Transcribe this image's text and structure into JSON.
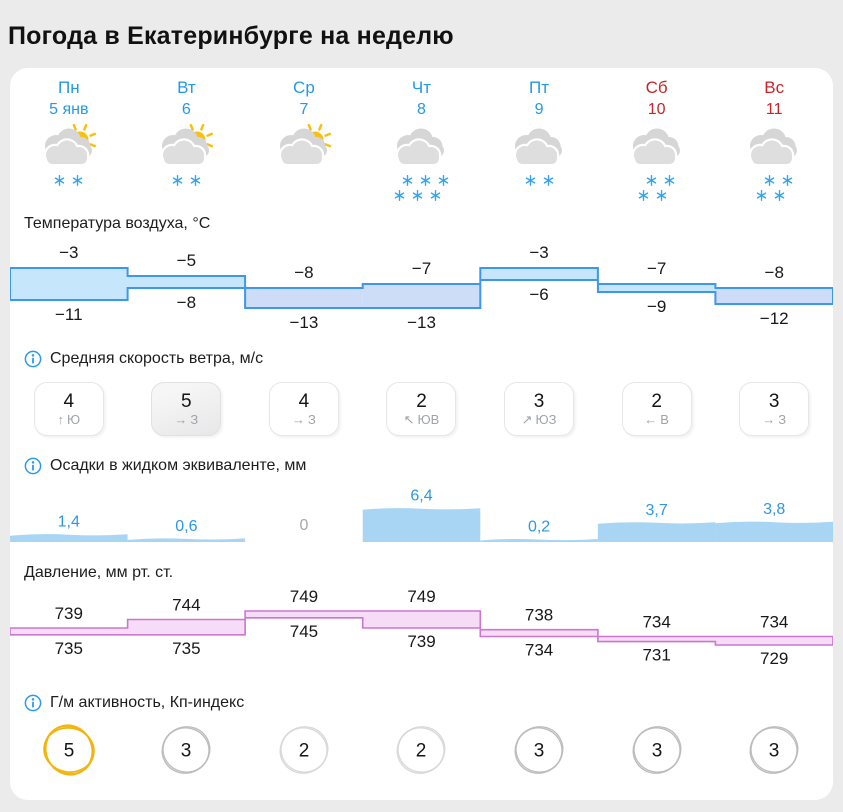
{
  "page": {
    "title": "Погода в Екатеринбурге на неделю"
  },
  "colors": {
    "day_blue": "#2499e9",
    "weekend_red": "#c4262b",
    "temp_fill_warm": "#c5e6fb",
    "temp_fill_cold": "#cddcf7",
    "temp_stroke": "#3d97ec",
    "press_fill": "#f6dcf6",
    "press_stroke": "#cb76cf",
    "precip_bar": "#a7d5f3",
    "precip_text": "#2d97e6",
    "zero_grey": "#a2a8ae",
    "kp_gold": "#f2b50d",
    "kp_grey_mid": "#bcbcbc",
    "kp_grey_low": "#d9d9d9",
    "cloud_back": "#d6d6d6",
    "cloud_front": "#dedede",
    "sun": "#f9c00d",
    "snowflake_blue": "#35a3f1",
    "info_blue": "#2a9bea"
  },
  "icons": {
    "info": "ⓘ",
    "snowflake": "❄",
    "cloud_sun": "cloud-with-sun",
    "cloud_snow": "snow-cloud"
  },
  "sections": {
    "temperature": {
      "label": "Температура воздуха, °C",
      "info": false
    },
    "wind": {
      "label": "Средняя скорость ветра, м/с",
      "info": true
    },
    "precip": {
      "label": "Осадки в жидком эквиваленте, мм",
      "info": true
    },
    "pressure": {
      "label": "Давление, мм рт. ст.",
      "info": false
    },
    "kp": {
      "label": "Г/м активность, Кп-индекс",
      "info": true
    }
  },
  "days": [
    {
      "name": "Пн",
      "date": "5 янв",
      "weekend": false,
      "icon": "cloud-sun",
      "snow_rows": [
        2
      ],
      "temp_day": -3,
      "temp_night": -11,
      "temp_day_label": "−3",
      "temp_night_label": "−11",
      "wind_speed": "4",
      "wind_arrow": "↑",
      "wind_dir": "Ю",
      "wind_highlight": false,
      "precip": 1.4,
      "precip_label": "1,4",
      "press_day": 739,
      "press_night": 735,
      "press_day_label": "739",
      "press_night_label": "735",
      "kp": "5",
      "kp_level": "high"
    },
    {
      "name": "Вт",
      "date": "6",
      "weekend": false,
      "icon": "cloud-sun",
      "snow_rows": [
        2
      ],
      "temp_day": -5,
      "temp_night": -8,
      "temp_day_label": "−5",
      "temp_night_label": "−8",
      "wind_speed": "5",
      "wind_arrow": "→",
      "wind_dir": "З",
      "wind_highlight": true,
      "precip": 0.6,
      "precip_label": "0,6",
      "press_day": 744,
      "press_night": 735,
      "press_day_label": "744",
      "press_night_label": "735",
      "kp": "3",
      "kp_level": "mid"
    },
    {
      "name": "Ср",
      "date": "7",
      "weekend": false,
      "icon": "cloud-sun",
      "snow_rows": [],
      "temp_day": -8,
      "temp_night": -13,
      "temp_day_label": "−8",
      "temp_night_label": "−13",
      "wind_speed": "4",
      "wind_arrow": "→",
      "wind_dir": "З",
      "wind_highlight": false,
      "precip": 0,
      "precip_label": "0",
      "press_day": 749,
      "press_night": 745,
      "press_day_label": "749",
      "press_night_label": "745",
      "kp": "2",
      "kp_level": "low"
    },
    {
      "name": "Чт",
      "date": "8",
      "weekend": false,
      "icon": "cloud",
      "snow_rows": [
        3,
        3
      ],
      "temp_day": -7,
      "temp_night": -13,
      "temp_day_label": "−7",
      "temp_night_label": "−13",
      "wind_speed": "2",
      "wind_arrow": "↖",
      "wind_dir": "ЮВ",
      "wind_highlight": false,
      "precip": 6.4,
      "precip_label": "6,4",
      "press_day": 749,
      "press_night": 739,
      "press_day_label": "749",
      "press_night_label": "739",
      "kp": "2",
      "kp_level": "low"
    },
    {
      "name": "Пт",
      "date": "9",
      "weekend": false,
      "icon": "cloud",
      "snow_rows": [
        2
      ],
      "temp_day": -3,
      "temp_night": -6,
      "temp_day_label": "−3",
      "temp_night_label": "−6",
      "wind_speed": "3",
      "wind_arrow": "↗",
      "wind_dir": "ЮЗ",
      "wind_highlight": false,
      "precip": 0.2,
      "precip_label": "0,2",
      "press_day": 738,
      "press_night": 734,
      "press_day_label": "738",
      "press_night_label": "734",
      "kp": "3",
      "kp_level": "mid"
    },
    {
      "name": "Сб",
      "date": "10",
      "weekend": true,
      "icon": "cloud",
      "snow_rows": [
        2,
        2
      ],
      "temp_day": -7,
      "temp_night": -9,
      "temp_day_label": "−7",
      "temp_night_label": "−9",
      "wind_speed": "2",
      "wind_arrow": "←",
      "wind_dir": "В",
      "wind_highlight": false,
      "precip": 3.7,
      "precip_label": "3,7",
      "press_day": 734,
      "press_night": 731,
      "press_day_label": "734",
      "press_night_label": "731",
      "kp": "3",
      "kp_level": "mid"
    },
    {
      "name": "Вс",
      "date": "11",
      "weekend": true,
      "icon": "cloud",
      "snow_rows": [
        2,
        2
      ],
      "temp_day": -8,
      "temp_night": -12,
      "temp_day_label": "−8",
      "temp_night_label": "−12",
      "wind_speed": "3",
      "wind_arrow": "→",
      "wind_dir": "З",
      "wind_highlight": false,
      "precip": 3.8,
      "precip_label": "3,8",
      "press_day": 734,
      "press_night": 729,
      "press_day_label": "734",
      "press_night_label": "729",
      "kp": "3",
      "kp_level": "mid"
    }
  ]
}
